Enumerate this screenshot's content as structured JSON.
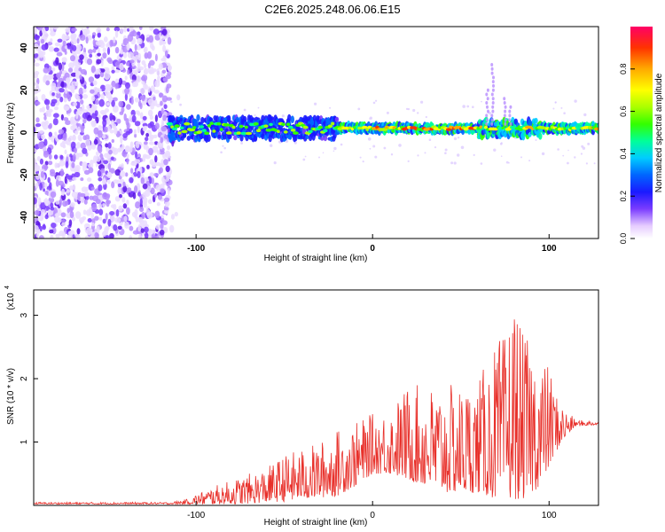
{
  "title": "C2E6.2025.248.06.06.E15",
  "chart_data": [
    {
      "type": "heatmap",
      "title": "C2E6.2025.248.06.06.E15",
      "xlabel": "Height of straight line (km)",
      "ylabel": "Frequency (Hz)",
      "xlim": [
        -192,
        128
      ],
      "ylim": [
        -50,
        50
      ],
      "xticks": [
        -100,
        0,
        100
      ],
      "xtick_labels": [
        "-100",
        "0",
        "100"
      ],
      "yticks": [
        -40,
        -20,
        0,
        20,
        40
      ],
      "ytick_labels": [
        "-40",
        "-20",
        "0",
        "20",
        "40"
      ],
      "colorbar": {
        "label": "Normalized spectral amplitude",
        "range": [
          0,
          1
        ],
        "ticks": [
          0,
          0.2,
          0.4,
          0.6,
          0.8
        ],
        "tick_labels": [
          "0.0",
          "0.2",
          "0.4",
          "0.6",
          "0.8"
        ]
      },
      "features": [
        {
          "name": "broadband noise",
          "x_range": [
            -192,
            -115
          ],
          "freq_range": [
            -50,
            50
          ],
          "amplitude": 0.15
        },
        {
          "name": "signal band",
          "x_range": [
            -115,
            128
          ],
          "freq_center": 2,
          "amplitude_range": [
            0.3,
            0.95
          ]
        }
      ]
    },
    {
      "type": "line",
      "title": "",
      "xlabel": "Height of straight line (km)",
      "ylabel": "SNR (10 * v/v)",
      "y_multiplier_label": "(x10",
      "y_multiplier_exponent": "4",
      "xlim": [
        -192,
        128
      ],
      "ylim": [
        0,
        3.4
      ],
      "xticks": [
        -100,
        0,
        100
      ],
      "xtick_labels": [
        "-100",
        "0",
        "100"
      ],
      "yticks": [
        1,
        2,
        3
      ],
      "ytick_labels": [
        "1",
        "2",
        "3"
      ],
      "color": "#e8302a",
      "envelope": {
        "x": [
          -192,
          -150,
          -115,
          -105,
          -100,
          -90,
          -80,
          -70,
          -60,
          -50,
          -40,
          -30,
          -20,
          -10,
          0,
          10,
          20,
          30,
          40,
          50,
          60,
          70,
          75,
          80,
          85,
          90,
          95,
          100,
          105,
          110,
          115,
          128
        ],
        "low": [
          0.02,
          0.02,
          0.02,
          0.02,
          0.02,
          0.02,
          0.02,
          0.03,
          0.05,
          0.06,
          0.1,
          0.12,
          0.15,
          0.3,
          0.5,
          0.5,
          0.4,
          0.3,
          0.2,
          0.2,
          0.2,
          0.1,
          0.1,
          0.1,
          0.1,
          0.2,
          0.3,
          0.6,
          0.9,
          1.1,
          1.25,
          1.27
        ],
        "high": [
          0.05,
          0.05,
          0.05,
          0.1,
          0.18,
          0.3,
          0.4,
          0.5,
          0.6,
          0.8,
          0.9,
          1.0,
          1.2,
          1.3,
          1.45,
          1.55,
          1.9,
          1.9,
          1.9,
          1.9,
          2.0,
          2.6,
          2.7,
          3.35,
          2.7,
          2.6,
          2.4,
          2.2,
          1.7,
          1.5,
          1.35,
          1.33
        ]
      }
    }
  ]
}
